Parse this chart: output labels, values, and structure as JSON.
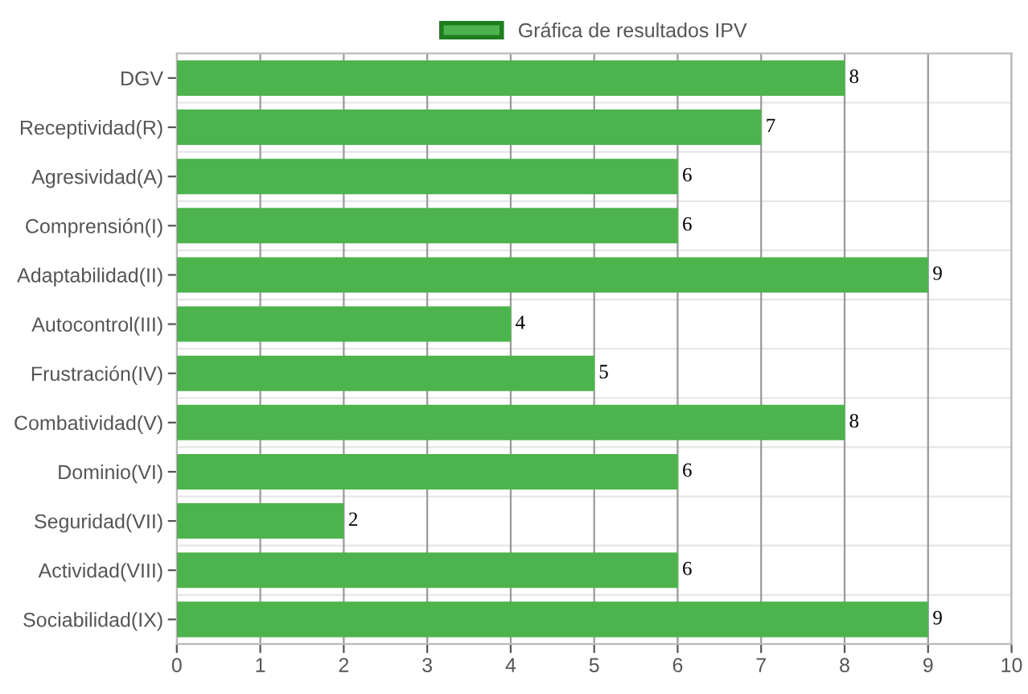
{
  "chart_data": {
    "type": "bar",
    "orientation": "horizontal",
    "categories": [
      "DGV",
      "Receptividad(R)",
      "Agresividad(A)",
      "Comprensión(I)",
      "Adaptabilidad(II)",
      "Autocontrol(III)",
      "Frustración(IV)",
      "Combatividad(V)",
      "Dominio(VI)",
      "Seguridad(VII)",
      "Actividad(VIII)",
      "Sociabilidad(IX)"
    ],
    "series": [
      {
        "name": "Gráfica de resultados IPV",
        "color": "#4db34d",
        "values": [
          8,
          7,
          6,
          6,
          9,
          4,
          5,
          8,
          6,
          2,
          6,
          9
        ]
      }
    ],
    "xlim": [
      0,
      10
    ],
    "xticks": [
      0,
      1,
      2,
      3,
      4,
      5,
      6,
      7,
      8,
      9,
      10
    ],
    "grid": true,
    "legend": "top",
    "data_labels": true
  }
}
